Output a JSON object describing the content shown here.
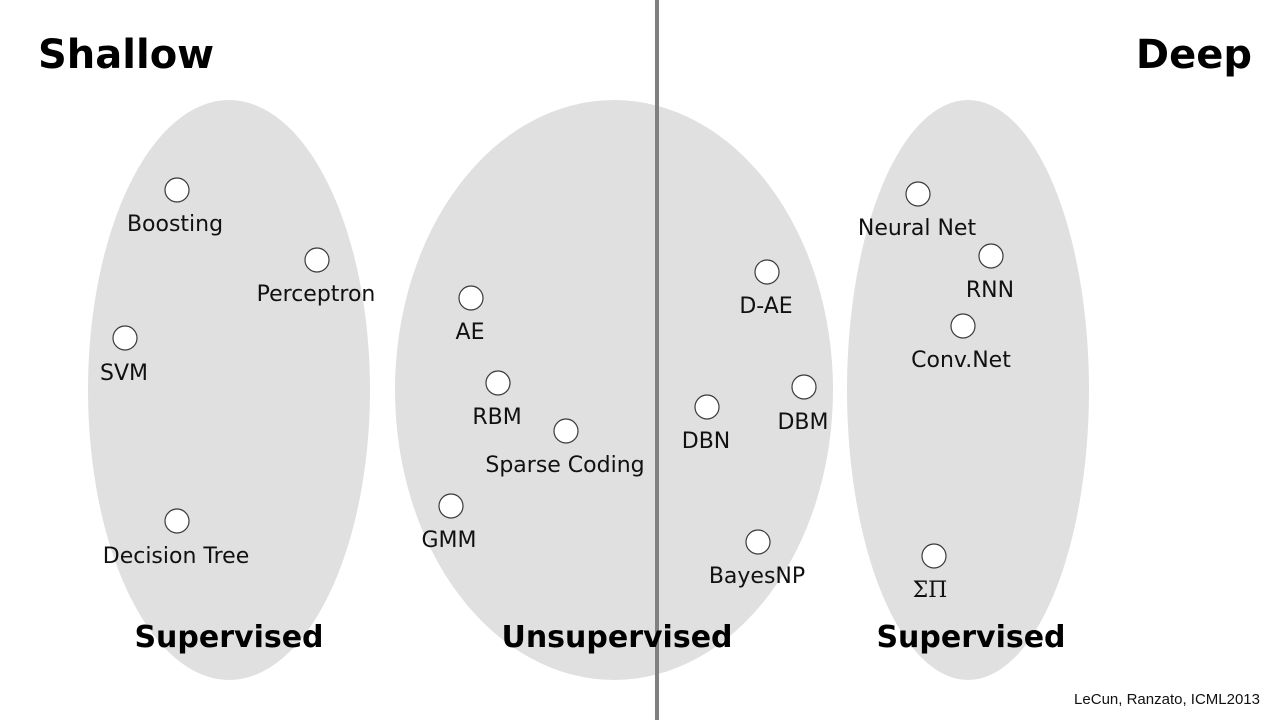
{
  "titles": {
    "left": "Shallow",
    "right": "Deep"
  },
  "groups": [
    {
      "name": "supervised-shallow",
      "label": "Supervised"
    },
    {
      "name": "unsupervised",
      "label": "Unsupervised"
    },
    {
      "name": "supervised-deep",
      "label": "Supervised"
    }
  ],
  "nodes": [
    {
      "key": "boosting",
      "label": "Boosting"
    },
    {
      "key": "perceptron",
      "label": "Perceptron"
    },
    {
      "key": "svm",
      "label": "SVM"
    },
    {
      "key": "decision-tree",
      "label": "Decision Tree"
    },
    {
      "key": "ae",
      "label": "AE"
    },
    {
      "key": "rbm",
      "label": "RBM"
    },
    {
      "key": "sparse-coding",
      "label": "Sparse Coding"
    },
    {
      "key": "gmm",
      "label": "GMM"
    },
    {
      "key": "d-ae",
      "label": "D-AE"
    },
    {
      "key": "dbn",
      "label": "DBN"
    },
    {
      "key": "dbm",
      "label": "DBM"
    },
    {
      "key": "bayesnp",
      "label": "BayesNP"
    },
    {
      "key": "neural-net",
      "label": "Neural Net"
    },
    {
      "key": "rnn",
      "label": "RNN"
    },
    {
      "key": "conv-net",
      "label": "Conv.Net"
    },
    {
      "key": "sum-product",
      "label": "ΣΠ"
    }
  ],
  "citation": "LeCun, Ranzato, ICML2013",
  "colors": {
    "ellipse": "#e0e0e0",
    "divider": "#808080",
    "background": "#ffffff"
  }
}
